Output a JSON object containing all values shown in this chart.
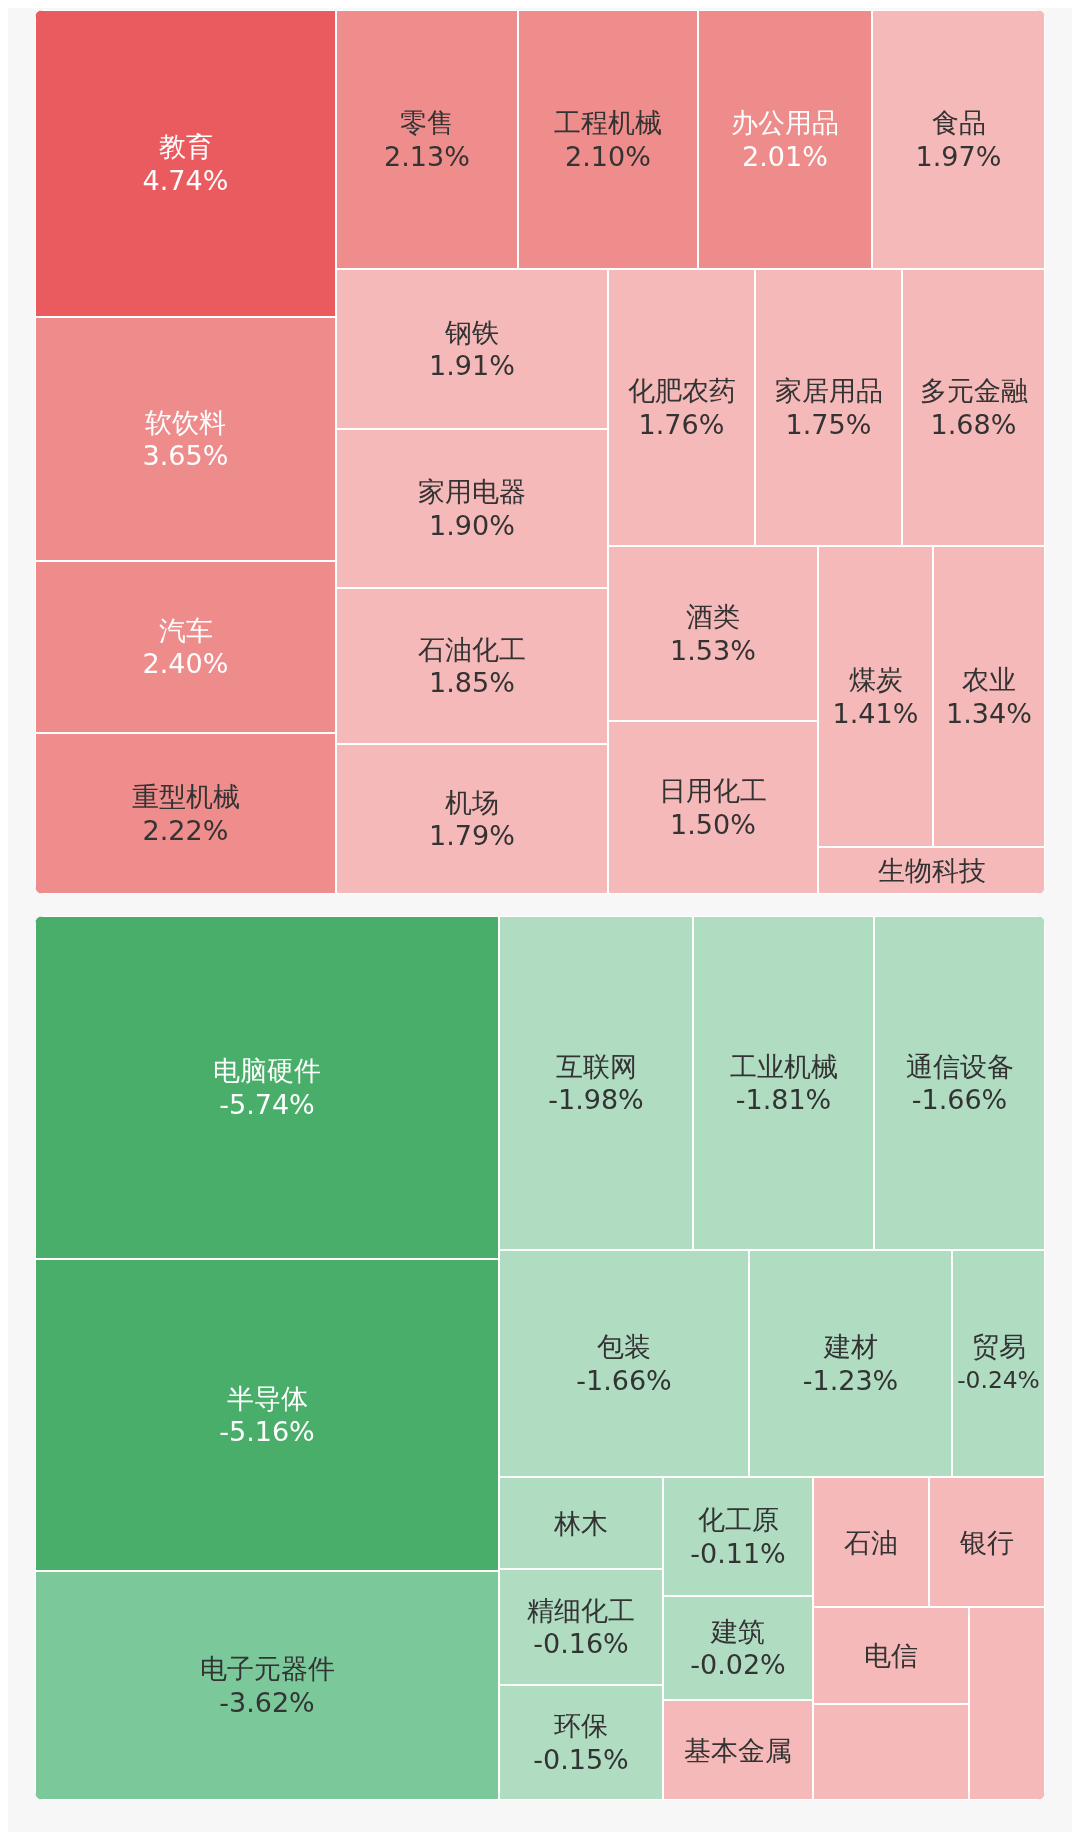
{
  "chart_data": [
    {
      "type": "other",
      "categories": [
        "教育",
        "软饮料",
        "汽车",
        "重型机械",
        "零售",
        "工程机械",
        "办公用品",
        "食品",
        "钢铁",
        "家用电器",
        "石油化工",
        "机场",
        "化肥农药",
        "家居用品",
        "多元金融",
        "酒类",
        "日用化工",
        "煤炭",
        "农业",
        "生物科技"
      ],
      "values": [
        4.74,
        3.65,
        2.4,
        2.22,
        2.13,
        2.1,
        2.01,
        1.97,
        1.91,
        1.9,
        1.85,
        1.79,
        1.76,
        1.75,
        1.68,
        1.53,
        1.5,
        1.41,
        1.34,
        null
      ],
      "value_labels": [
        "4.74%",
        "3.65%",
        "2.40%",
        "2.22%",
        "2.13%",
        "2.10%",
        "2.01%",
        "1.97%",
        "1.91%",
        "1.90%",
        "1.85%",
        "1.79%",
        "1.76%",
        "1.75%",
        "1.68%",
        "1.53%",
        "1.50%",
        "1.41%",
        "1.34%",
        null
      ],
      "colors": [
        "#e95b5e",
        "#ee8b8b",
        "#ee8b8b",
        "#ef8d8d",
        "#ef8d8d",
        "#ef8d8d",
        "#ee8b8b",
        "#f6b9b9",
        "#f6b9b9",
        "#f6b9b9",
        "#f6b9b9",
        "#f6b9b9",
        "#f6b9b9",
        "#f6b9b9",
        "#f6b9b9",
        "#f6b9b9",
        "#f6b9b9",
        "#f6b9b9",
        "#f6b9b9",
        "#f6b9b9"
      ]
    },
    {
      "type": "other",
      "categories": [
        "电脑硬件",
        "半导体",
        "电子元器件",
        "互联网",
        "工业机械",
        "通信设备",
        "包装",
        "建材",
        "贸易",
        "林木",
        "精细化工",
        "环保",
        "化工原",
        "建筑",
        "基本金属",
        "石油",
        "银行",
        "电信",
        null,
        null
      ],
      "values": [
        -5.74,
        -5.16,
        -3.62,
        -1.98,
        -1.81,
        -1.66,
        -1.66,
        -1.23,
        -0.24,
        null,
        -0.16,
        -0.15,
        -0.11,
        -0.02,
        null,
        null,
        null,
        null,
        null,
        null
      ],
      "value_labels": [
        "-5.74%",
        "-5.16%",
        "-3.62%",
        "-1.98%",
        "-1.81%",
        "-1.66%",
        "-1.66%",
        "-1.23%",
        "-0.24%",
        null,
        "-0.16%",
        "-0.15%",
        "-0.11%",
        "-0.02%",
        null,
        null,
        null,
        null,
        null,
        null
      ],
      "colors": [
        "#4aae6b",
        "#4aae6b",
        "#7bc99a",
        "#b0dcc2",
        "#b0dcc2",
        "#b0dcc2",
        "#b0dcc2",
        "#b0dcc2",
        "#b0dcc2",
        "#b0dcc2",
        "#b0dcc2",
        "#b0dcc2",
        "#b0dcc2",
        "#b0dcc2",
        "#f6b9b9",
        "#f6b9b9",
        "#f6b9b9",
        "#f6b9b9",
        "#f6b9b9",
        "#f6b9b9"
      ]
    }
  ]
}
